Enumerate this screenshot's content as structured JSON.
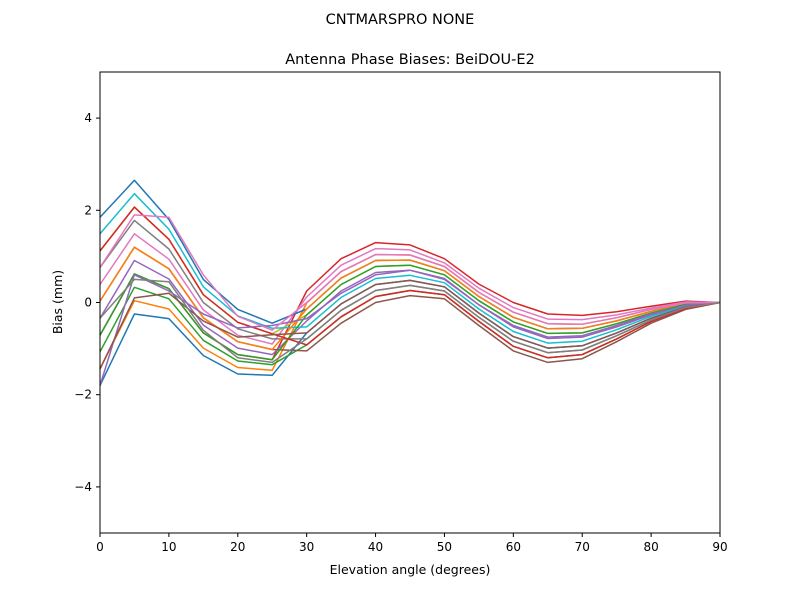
{
  "chart_data": {
    "type": "line",
    "suptitle": "CNTMARSPRO      NONE",
    "title": "Antenna Phase Biases: BeiDOU-E2",
    "xlabel": "Elevation angle (degrees)",
    "ylabel": "Bias (mm)",
    "xlim": [
      0,
      90
    ],
    "ylim": [
      -5,
      5
    ],
    "xticks": [
      0,
      10,
      20,
      30,
      40,
      50,
      60,
      70,
      80,
      90
    ],
    "yticks": [
      -4,
      -2,
      0,
      2,
      4
    ],
    "ytick_labels": [
      "−4",
      "−2",
      "0",
      "2",
      "4"
    ],
    "grid": false,
    "x": [
      0,
      5,
      10,
      15,
      20,
      25,
      30,
      35,
      40,
      45,
      50,
      55,
      60,
      65,
      70,
      75,
      80,
      85,
      90
    ],
    "colors": [
      "#1f77b4",
      "#ff7f0e",
      "#2ca02c",
      "#d62728",
      "#9467bd",
      "#8c564b",
      "#e377c2",
      "#7f7f7f",
      "#bcbd22",
      "#17becf"
    ],
    "series": [
      {
        "values": [
          -1.8,
          -0.25,
          -0.35,
          -1.15,
          -1.55,
          -1.58,
          -0.66,
          -0.03,
          0.39,
          0.48,
          0.34,
          -0.23,
          -0.74,
          -0.99,
          -0.94,
          -0.66,
          -0.34,
          -0.1,
          0
        ]
      },
      {
        "values": [
          -1.44,
          0.04,
          -0.14,
          -0.99,
          -1.41,
          -1.47,
          -0.01,
          0.67,
          1.04,
          1.03,
          0.78,
          0.22,
          -0.21,
          -0.46,
          -0.47,
          -0.33,
          -0.15,
          -0.01,
          0
        ]
      },
      {
        "values": [
          -1.07,
          0.33,
          0.08,
          -0.82,
          -1.27,
          -1.35,
          -0.92,
          -0.31,
          0.13,
          0.26,
          0.17,
          -0.41,
          -0.95,
          -1.2,
          -1.13,
          -0.79,
          -0.41,
          -0.13,
          0
        ]
      },
      {
        "values": [
          -0.71,
          0.62,
          0.3,
          -0.66,
          -1.13,
          -1.24,
          0.25,
          0.95,
          1.3,
          1.25,
          0.95,
          0.4,
          0.0,
          -0.25,
          -0.28,
          -0.2,
          -0.08,
          0.03,
          0
        ]
      },
      {
        "values": [
          -0.34,
          0.91,
          0.51,
          -0.49,
          -0.99,
          -1.13,
          -0.4,
          0.25,
          0.65,
          0.7,
          0.52,
          -0.05,
          -0.53,
          -0.78,
          -0.75,
          -0.53,
          -0.27,
          -0.06,
          0
        ]
      },
      {
        "values": [
          0.03,
          1.2,
          0.73,
          -0.33,
          -0.85,
          -1.02,
          -1.05,
          -0.45,
          0.0,
          0.15,
          0.08,
          -0.5,
          -1.05,
          -1.3,
          -1.22,
          -0.85,
          -0.45,
          -0.15,
          0
        ]
      },
      {
        "values": [
          0.39,
          1.49,
          0.94,
          -0.16,
          -0.71,
          -0.9,
          0.12,
          0.81,
          1.17,
          1.14,
          0.86,
          0.31,
          -0.11,
          -0.36,
          -0.37,
          -0.27,
          -0.12,
          0.01,
          0
        ]
      },
      {
        "values": [
          0.76,
          1.78,
          1.16,
          0.0,
          -0.57,
          -0.79,
          -0.79,
          -0.17,
          0.26,
          0.37,
          0.25,
          -0.32,
          -0.84,
          -1.09,
          -1.03,
          -0.72,
          -0.38,
          -0.11,
          0
        ]
      },
      {
        "values": [
          1.12,
          2.07,
          1.37,
          0.17,
          -0.43,
          -0.68,
          -0.27,
          0.39,
          0.78,
          0.81,
          0.6,
          0.04,
          -0.42,
          -0.67,
          -0.66,
          -0.46,
          -0.23,
          -0.04,
          0
        ]
      },
      {
        "values": [
          1.49,
          2.36,
          1.59,
          0.34,
          -0.29,
          -0.56,
          -0.53,
          0.11,
          0.52,
          0.59,
          0.43,
          -0.14,
          -0.63,
          -0.88,
          -0.84,
          -0.59,
          -0.3,
          -0.08,
          0
        ]
      },
      {
        "values": [
          1.85,
          2.65,
          1.8,
          0.5,
          -0.15,
          -0.45,
          -0.14,
          0.53,
          0.91,
          0.92,
          0.69,
          0.13,
          -0.32,
          -0.57,
          -0.56,
          -0.4,
          -0.19,
          -0.02,
          0
        ]
      },
      {
        "values": [
          0.03,
          1.2,
          0.73,
          -0.33,
          -0.85,
          -1.02,
          -0.14,
          0.53,
          0.91,
          0.92,
          0.69,
          0.13,
          -0.32,
          -0.57,
          -0.56,
          -0.4,
          -0.19,
          -0.02,
          0
        ]
      },
      {
        "values": [
          -0.71,
          0.62,
          0.3,
          -0.66,
          -1.13,
          -1.24,
          -0.27,
          0.39,
          0.78,
          0.81,
          0.6,
          0.04,
          -0.42,
          -0.67,
          -0.66,
          -0.46,
          -0.23,
          -0.04,
          0
        ]
      },
      {
        "values": [
          1.12,
          2.07,
          1.37,
          0.17,
          -0.43,
          -0.68,
          -0.92,
          -0.31,
          0.13,
          0.26,
          0.17,
          -0.41,
          -0.95,
          -1.2,
          -1.13,
          -0.79,
          -0.41,
          -0.13,
          0
        ]
      },
      {
        "values": [
          -1.8,
          0.6,
          0.25,
          -0.25,
          -0.55,
          -0.5,
          -0.35,
          0.2,
          0.6,
          0.7,
          0.5,
          -0.05,
          -0.5,
          -0.75,
          -0.72,
          -0.5,
          -0.25,
          -0.06,
          0
        ]
      },
      {
        "values": [
          -1.44,
          0.1,
          0.2,
          -0.4,
          -0.75,
          -0.7,
          -0.66,
          -0.03,
          0.39,
          0.48,
          0.34,
          -0.23,
          -0.74,
          -0.99,
          -0.94,
          -0.66,
          -0.34,
          -0.1,
          0
        ]
      },
      {
        "values": [
          0.76,
          1.9,
          1.85,
          0.6,
          -0.3,
          -0.6,
          0.0,
          0.67,
          1.04,
          1.03,
          0.78,
          0.22,
          -0.21,
          -0.46,
          -0.47,
          -0.33,
          -0.15,
          -0.01,
          0
        ]
      },
      {
        "values": [
          -0.34,
          0.5,
          0.45,
          -0.6,
          -1.2,
          -1.3,
          -0.79,
          -0.17,
          0.26,
          0.37,
          0.25,
          -0.32,
          -0.84,
          -1.09,
          -1.03,
          -0.72,
          -0.38,
          -0.11,
          0
        ]
      }
    ]
  }
}
